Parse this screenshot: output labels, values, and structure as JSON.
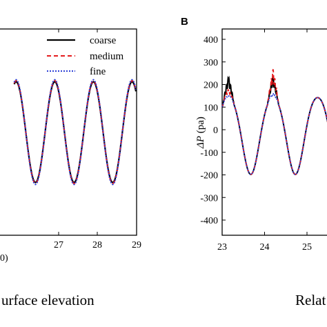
{
  "chart_data": [
    {
      "panel": "",
      "type": "line",
      "title": "",
      "xlabel": "…0)",
      "ylabel": "",
      "xlim": [
        25.85,
        29
      ],
      "ylim": [
        -1.6,
        1.6
      ],
      "xticks": [
        "27",
        "28",
        "29"
      ],
      "caption": "urface elevation",
      "legend_position": "top-right",
      "series": [
        {
          "name": "coarse",
          "color": "#000000",
          "dash": "solid",
          "period": 1.0,
          "amplitude": 1.0,
          "peak_x": [
            26.9,
            27.9
          ]
        },
        {
          "name": "medium",
          "color": "#e41a1c",
          "dash": "dashed",
          "period": 1.0,
          "amplitude": 1.02,
          "peak_x": [
            26.9,
            27.9
          ]
        },
        {
          "name": "fine",
          "color": "#2b3fd6",
          "dash": "dotted",
          "period": 1.0,
          "amplitude": 1.04,
          "peak_x": [
            26.9,
            27.9
          ]
        }
      ]
    },
    {
      "panel": "B",
      "type": "line",
      "title": "",
      "xlabel": "",
      "ylabel": "ΔP (pa)",
      "ylabel_symbol": "ΔP",
      "ylabel_unit": " (pa)",
      "xlim": [
        23,
        25.7
      ],
      "ylim": [
        -450,
        450
      ],
      "xticks": [
        "23",
        "24",
        "25"
      ],
      "yticks": [
        "400",
        "300",
        "200",
        "100",
        "0",
        "-100",
        "-200",
        "-300",
        "-400"
      ],
      "caption": "Relat",
      "series": [
        {
          "name": "coarse",
          "color": "#000000",
          "dash": "solid",
          "peak_x": [
            23.15,
            24.2
          ],
          "peak_y": [
            235,
            240
          ],
          "trough_y": -195
        },
        {
          "name": "medium",
          "color": "#e41a1c",
          "dash": "dashed",
          "peak_x": [
            23.15,
            24.2
          ],
          "peak_y": [
            180,
            270
          ],
          "trough_y": -195
        },
        {
          "name": "fine",
          "color": "#2b3fd6",
          "dash": "dotted",
          "peak_x": [
            23.15,
            24.2
          ],
          "peak_y": [
            150,
            160
          ],
          "trough_y": -195
        }
      ]
    }
  ]
}
